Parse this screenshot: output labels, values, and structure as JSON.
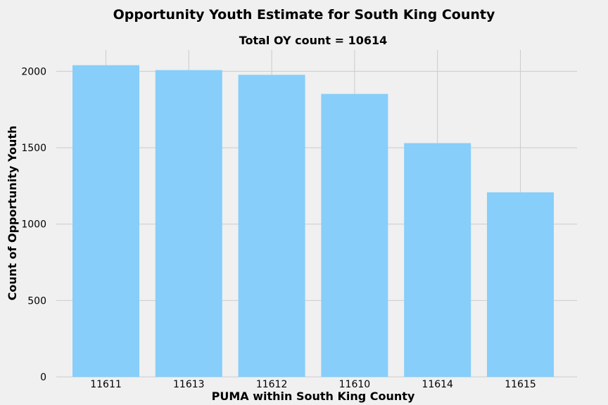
{
  "chart_data": {
    "type": "bar",
    "suptitle": "Opportunity Youth Estimate for South King County",
    "title": "Total OY count = 10614",
    "xlabel": "PUMA within South King County",
    "ylabel": "Count of Opportunity Youth",
    "categories": [
      "11611",
      "11613",
      "11612",
      "11610",
      "11614",
      "11615"
    ],
    "values": [
      2040,
      2008,
      1977,
      1852,
      1530,
      1208
    ],
    "ylim": [
      0,
      2140
    ],
    "yticks": [
      0,
      500,
      1000,
      1500,
      2000
    ],
    "grid": true,
    "bar_color": "#87cefa",
    "background_color": "#f0f0f0"
  }
}
